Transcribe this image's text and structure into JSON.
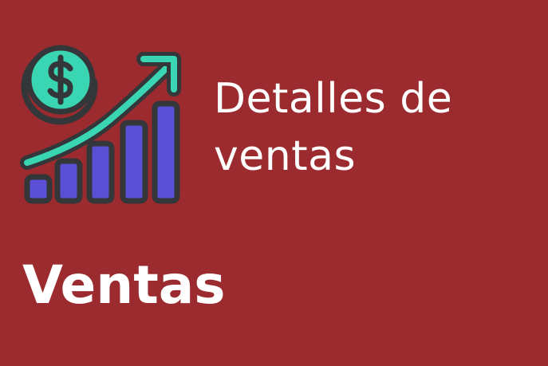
{
  "colors": {
    "background": "#9b2b2e",
    "text": "#ffffff",
    "bar_fill": "#5b4fd6",
    "accent_teal": "#3ad6b4",
    "outline": "#33373a"
  },
  "icon": "sales-growth-chart-icon",
  "title_line1": "Detalles de",
  "title_line2": "ventas",
  "subtitle": "Ventas"
}
